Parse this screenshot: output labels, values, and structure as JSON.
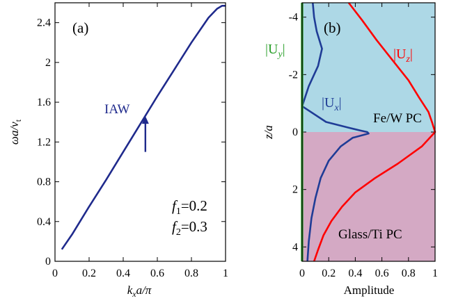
{
  "chart_data": [
    {
      "panel": "(a)",
      "type": "line",
      "xlabel": "k",
      "xlabel_sub": "x",
      "xlabel_tail": "a/π",
      "ylabel": "ωa/v",
      "ylabel_sub": "t",
      "xlim": [
        0,
        1
      ],
      "ylim": [
        0,
        2.6
      ],
      "xticks": [
        "0",
        "0.2",
        "0.4",
        "0.6",
        "0.8",
        "1"
      ],
      "xtick_values": [
        0,
        0.2,
        0.4,
        0.6,
        0.8,
        1
      ],
      "yticks": [
        "0",
        "0.4",
        "0.8",
        "1.2",
        "1.6",
        "2",
        "2.4"
      ],
      "ytick_values": [
        0,
        0.4,
        0.8,
        1.2,
        1.6,
        2.0,
        2.4
      ],
      "grid": false,
      "series": [
        {
          "name": "",
          "color": "#1f2a8c",
          "x": [
            0.04,
            0.1,
            0.2,
            0.3,
            0.4,
            0.5,
            0.6,
            0.7,
            0.8,
            0.9,
            0.95,
            0.98,
            1.0
          ],
          "y": [
            0.12,
            0.27,
            0.55,
            0.82,
            1.1,
            1.38,
            1.66,
            1.93,
            2.2,
            2.45,
            2.54,
            2.57,
            2.57
          ]
        }
      ],
      "annotations": [
        {
          "text": "IAW",
          "x": 0.29,
          "y": 1.45,
          "color": "#1f2a8c"
        },
        {
          "type": "arrow",
          "x": 0.53,
          "y_from": 1.1,
          "y_to": 1.46,
          "color": "#1f2a8c"
        },
        {
          "text": "f",
          "sub": "1",
          "tail": "=0.2",
          "x": 0.69,
          "y": 0.5
        },
        {
          "text": "f",
          "sub": "2",
          "tail": "=0.3",
          "x": 0.69,
          "y": 0.28
        }
      ]
    },
    {
      "panel": "(b)",
      "type": "line",
      "xlabel": "Amplitude",
      "ylabel": "z/a",
      "xlim": [
        0,
        1
      ],
      "ylim": [
        -4.5,
        4.5
      ],
      "y_inverted": true,
      "xticks": [
        "0",
        "0.2",
        "0.4",
        "0.6",
        "0.8",
        "1"
      ],
      "xtick_values": [
        0,
        0.2,
        0.4,
        0.6,
        0.8,
        1
      ],
      "yticks": [
        "-4",
        "-2",
        "0",
        "2",
        "4"
      ],
      "ytick_values": [
        -4,
        -2,
        0,
        2,
        4
      ],
      "grid": false,
      "regions": [
        {
          "label": "Fe/W PC",
          "z_from": -4.5,
          "z_to": 0,
          "color": "#add8e6"
        },
        {
          "label": "Glass/Ti PC",
          "z_from": 0,
          "z_to": 4.5,
          "color": "#d4a9c4"
        }
      ],
      "series": [
        {
          "name": "|U",
          "name_sub": "x",
          "name_tail": "|",
          "color": "#1f3c96",
          "x": [
            0.08,
            0.09,
            0.11,
            0.15,
            0.12,
            0.05,
            0.0,
            0.18,
            0.35,
            0.44,
            0.49,
            0.5,
            0.38,
            0.29,
            0.2,
            0.14,
            0.1,
            0.07,
            0.05,
            0.04
          ],
          "y": [
            -4.5,
            -4.0,
            -3.5,
            -2.9,
            -2.3,
            -1.6,
            -0.9,
            -0.35,
            -0.15,
            -0.05,
            0.0,
            0.05,
            0.2,
            0.5,
            1.0,
            1.6,
            2.3,
            3.0,
            3.8,
            4.5
          ]
        },
        {
          "name": "|U",
          "name_sub": "z",
          "name_tail": "|",
          "color": "#ff0000",
          "x": [
            0.35,
            0.45,
            0.56,
            0.68,
            0.8,
            0.88,
            0.95,
            0.98,
            1.0,
            0.9,
            0.72,
            0.55,
            0.4,
            0.3,
            0.22,
            0.16,
            0.12,
            0.09
          ],
          "y": [
            -4.5,
            -3.9,
            -3.2,
            -2.5,
            -1.8,
            -1.2,
            -0.7,
            -0.3,
            0.0,
            0.5,
            1.1,
            1.6,
            2.1,
            2.6,
            3.1,
            3.6,
            4.1,
            4.5
          ]
        },
        {
          "name": "|U",
          "name_sub": "y",
          "name_tail": "|",
          "color": "#2ca02c",
          "x": [
            0.0,
            0.0
          ],
          "y": [
            -4.5,
            4.5
          ]
        }
      ],
      "annotations": [
        {
          "text": "Fe/W PC",
          "x": 0.5,
          "y": 0.75
        },
        {
          "text": "Glass/Ti PC",
          "x": 0.42,
          "y": 3.0
        }
      ]
    }
  ]
}
